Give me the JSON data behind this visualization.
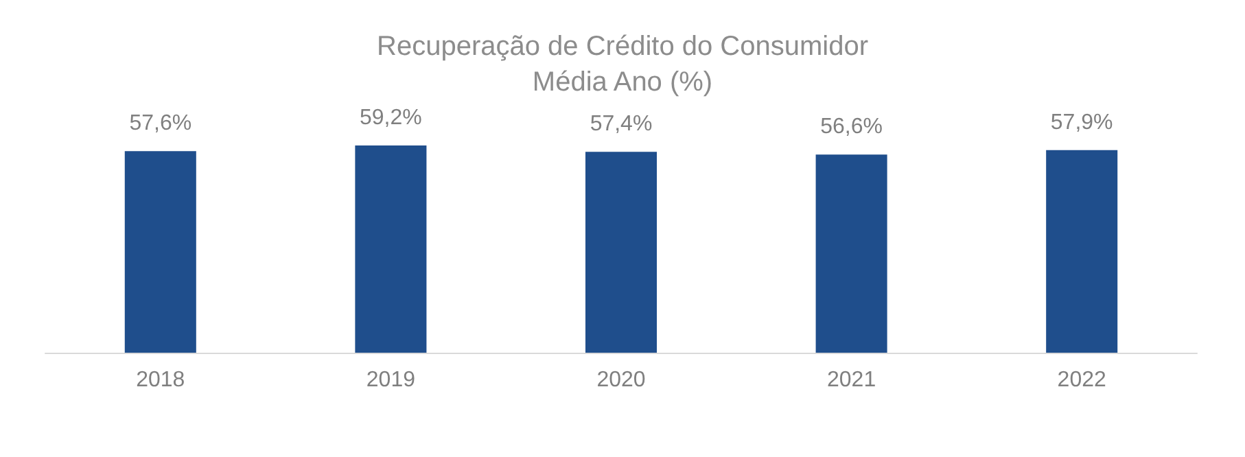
{
  "chart_data": {
    "type": "bar",
    "title": "Recuperação de Crédito do Consumidor\nMédia Ano (%)",
    "categories": [
      "2018",
      "2019",
      "2020",
      "2021",
      "2022"
    ],
    "values": [
      57.6,
      59.2,
      57.4,
      56.6,
      57.9
    ],
    "value_labels": [
      "57,6%",
      "59,2%",
      "57,4%",
      "56,6%",
      "57,9%"
    ],
    "color": "#1f4e8c"
  }
}
